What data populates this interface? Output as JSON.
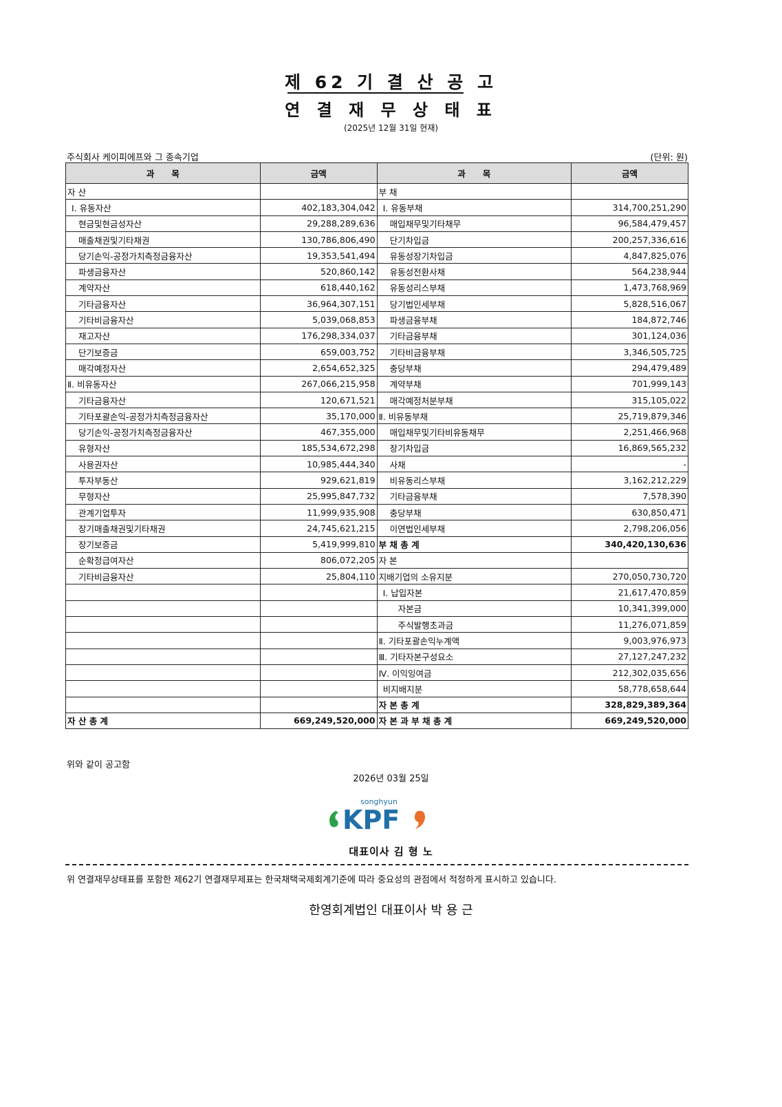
{
  "title": "제 62 기 결 산 공 고",
  "subtitle": "연 결 재 무 상 태 표",
  "as_of": "(2025년 12월 31일 현재)",
  "company": "주식회사 케이피에프와 그 종속기업",
  "unit": "(단위: 원)",
  "headers": {
    "item": "과　　목",
    "amount": "금액"
  },
  "rows": [
    {
      "l": "자 산",
      "la": "",
      "r": "부 채",
      "ra": ""
    },
    {
      "l": "Ⅰ. 유동자산",
      "la": "402,183,304,042",
      "r": "Ⅰ. 유동부채",
      "ra": "314,700,251,290",
      "li": 1,
      "ri": 1
    },
    {
      "l": "현금및현금성자산",
      "la": "29,288,289,636",
      "r": "매입채무및기타채무",
      "ra": "96,584,479,457",
      "li": 2,
      "ri": 2
    },
    {
      "l": "매출채권및기타채권",
      "la": "130,786,806,490",
      "r": "단기차입금",
      "ra": "200,257,336,616",
      "li": 2,
      "ri": 2
    },
    {
      "l": "당기손익-공정가치측정금융자산",
      "la": "19,353,541,494",
      "r": "유동성장기차입금",
      "ra": "4,847,825,076",
      "li": 2,
      "ri": 2
    },
    {
      "l": "파생금융자산",
      "la": "520,860,142",
      "r": "유동성전환사채",
      "ra": "564,238,944",
      "li": 2,
      "ri": 2
    },
    {
      "l": "계약자산",
      "la": "618,440,162",
      "r": "유동성리스부채",
      "ra": "1,473,768,969",
      "li": 2,
      "ri": 2
    },
    {
      "l": "기타금융자산",
      "la": "36,964,307,151",
      "r": "당기법인세부채",
      "ra": "5,828,516,067",
      "li": 2,
      "ri": 2
    },
    {
      "l": "기타비금융자산",
      "la": "5,039,068,853",
      "r": "파생금융부채",
      "ra": "184,872,746",
      "li": 2,
      "ri": 2
    },
    {
      "l": "재고자산",
      "la": "176,298,334,037",
      "r": "기타금융부채",
      "ra": "301,124,036",
      "li": 2,
      "ri": 2
    },
    {
      "l": "단기보증금",
      "la": "659,003,752",
      "r": "기타비금융부채",
      "ra": "3,346,505,725",
      "li": 2,
      "ri": 2
    },
    {
      "l": "매각예정자산",
      "la": "2,654,652,325",
      "r": "충당부채",
      "ra": "294,479,489",
      "li": 2,
      "ri": 2
    },
    {
      "l": "Ⅱ. 비유동자산",
      "la": "267,066,215,958",
      "r": "계약부채",
      "ra": "701,999,143",
      "li": 0,
      "ri": 2
    },
    {
      "l": "기타금융자산",
      "la": "120,671,521",
      "r": "매각예정처분부채",
      "ra": "315,105,022",
      "li": 2,
      "ri": 2
    },
    {
      "l": "기타포괄손익-공정가치측정금융자산",
      "la": "35,170,000",
      "r": "Ⅱ. 비유동부채",
      "ra": "25,719,879,346",
      "li": 2,
      "ri": 0
    },
    {
      "l": "당기손익-공정가치측정금융자산",
      "la": "467,355,000",
      "r": "매입채무및기타비유동채무",
      "ra": "2,251,466,968",
      "li": 2,
      "ri": 2
    },
    {
      "l": "유형자산",
      "la": "185,534,672,298",
      "r": "장기차입금",
      "ra": "16,869,565,232",
      "li": 2,
      "ri": 2
    },
    {
      "l": "사용권자산",
      "la": "10,985,444,340",
      "r": "사채",
      "ra": "-",
      "li": 2,
      "ri": 2
    },
    {
      "l": "투자부동산",
      "la": "929,621,819",
      "r": "비유동리스부채",
      "ra": "3,162,212,229",
      "li": 2,
      "ri": 2
    },
    {
      "l": "무형자산",
      "la": "25,995,847,732",
      "r": "기타금융부채",
      "ra": "7,578,390",
      "li": 2,
      "ri": 2
    },
    {
      "l": "관계기업투자",
      "la": "11,999,935,908",
      "r": "충당부채",
      "ra": "630,850,471",
      "li": 2,
      "ri": 2
    },
    {
      "l": "장기매출채권및기타채권",
      "la": "24,745,621,215",
      "r": "이연법인세부채",
      "ra": "2,798,206,056",
      "li": 2,
      "ri": 2
    },
    {
      "l": "장기보증금",
      "la": "5,419,999,810",
      "r": "부 채 총 계",
      "ra": "340,420,130,636",
      "li": 2,
      "rb": true
    },
    {
      "l": "순확정급여자산",
      "la": "806,072,205",
      "r": "자 본",
      "ra": "",
      "li": 2
    },
    {
      "l": "기타비금융자산",
      "la": "25,804,110",
      "r": "지배기업의 소유지분",
      "ra": "270,050,730,720",
      "li": 2
    },
    {
      "l": "",
      "la": "",
      "r": "Ⅰ. 납입자본",
      "ra": "21,617,470,859",
      "ri": 1
    },
    {
      "l": "",
      "la": "",
      "r": "자본금",
      "ra": "10,341,399,000",
      "ri": 3
    },
    {
      "l": "",
      "la": "",
      "r": "주식발행초과금",
      "ra": "11,276,071,859",
      "ri": 3
    },
    {
      "l": "",
      "la": "",
      "r": "Ⅱ. 기타포괄손익누계액",
      "ra": "9,003,976,973"
    },
    {
      "l": "",
      "la": "",
      "r": "Ⅲ. 기타자본구성요소",
      "ra": "27,127,247,232"
    },
    {
      "l": "",
      "la": "",
      "r": "Ⅳ. 이익잉여금",
      "ra": "212,302,035,656"
    },
    {
      "l": "",
      "la": "",
      "r": "비지배지분",
      "ra": "58,778,658,644",
      "ri": 1
    },
    {
      "l": "",
      "la": "",
      "r": "자 본 총 계",
      "ra": "328,829,389,364",
      "rb": true
    },
    {
      "l": "자 산 총 계",
      "la": "669,249,520,000",
      "r": "자 본 과 부 채 총 계",
      "ra": "669,249,520,000",
      "lb": true,
      "rb": true
    }
  ],
  "footer": {
    "notice": "위와 같이 공고함",
    "date": "2026년 03월 25일",
    "logo_text": "songhyun KPF",
    "ceo": "대표이사 김 형 노",
    "opinion": "위 연결재무상태표를 포함한 제62기 연결재무제표는 한국채택국제회계기준에 따라 중요성의 관점에서 적정하게 표시하고 있습니다.",
    "auditor": "한영회계법인 대표이사 박 용 근"
  },
  "colors": {
    "logo_blue": "#1f6fa8",
    "logo_green": "#2fa04a",
    "logo_orange": "#e8702a",
    "header_bg": "#dcdcdc"
  }
}
